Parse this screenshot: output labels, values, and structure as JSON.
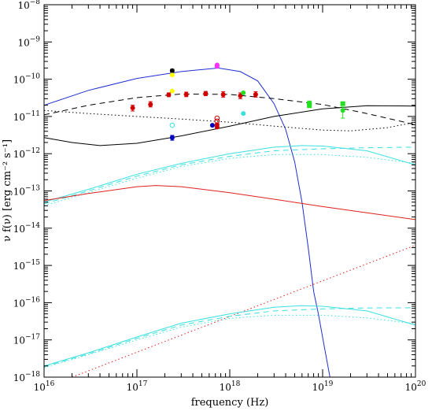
{
  "chart_data": {
    "type": "scatter",
    "xlabel": "frequency (Hz)",
    "ylabel": "ν f(ν) [erg cm⁻² s⁻¹]",
    "xscale": "log",
    "yscale": "log",
    "xlim": [
      1e+16,
      1e+20
    ],
    "ylim": [
      1e-18,
      1e-08
    ],
    "x_tick_labels": [
      {
        "base": "10",
        "exp": "16",
        "value": 1e+16
      },
      {
        "base": "10",
        "exp": "17",
        "value": 1e+17
      },
      {
        "base": "10",
        "exp": "18",
        "value": 1e+18
      },
      {
        "base": "10",
        "exp": "19",
        "value": 1e+19
      },
      {
        "base": "10",
        "exp": "20",
        "value": 1e+20
      }
    ],
    "y_tick_labels": [
      {
        "base": "10",
        "exp": "−18",
        "value": 1e-18
      },
      {
        "base": "10",
        "exp": "−17",
        "value": 1e-17
      },
      {
        "base": "10",
        "exp": "−16",
        "value": 1e-16
      },
      {
        "base": "10",
        "exp": "−15",
        "value": 1e-15
      },
      {
        "base": "10",
        "exp": "−14",
        "value": 1e-14
      },
      {
        "base": "10",
        "exp": "−13",
        "value": 1e-13
      },
      {
        "base": "10",
        "exp": "−12",
        "value": 1e-12
      },
      {
        "base": "10",
        "exp": "−11",
        "value": 1e-11
      },
      {
        "base": "10",
        "exp": "−10",
        "value": 1e-10
      },
      {
        "base": "10",
        "exp": "−9",
        "value": 1e-09
      },
      {
        "base": "10",
        "exp": "−8",
        "value": 1e-08
      }
    ],
    "curves": [
      {
        "color": "#1f2fd0",
        "dash": "solid",
        "points": [
          [
            1e+16,
            2e-11
          ],
          [
            3e+16,
            5e-11
          ],
          [
            1e+17,
            1.05e-10
          ],
          [
            3e+17,
            1.6e-10
          ],
          [
            7.5e+17,
            2e-10
          ],
          [
            1.3e+18,
            1.6e-10
          ],
          [
            2e+18,
            9e-11
          ],
          [
            3e+18,
            2.2e-11
          ],
          [
            4e+18,
            4.5e-12
          ],
          [
            5e+18,
            6e-13
          ],
          [
            6e+18,
            5e-14
          ],
          [
            7e+18,
            3e-15
          ],
          [
            8e+18,
            2e-16
          ],
          [
            9e+18,
            5e-17
          ],
          [
            1.05e+19,
            6e-18
          ],
          [
            1.2e+19,
            1e-18
          ]
        ]
      },
      {
        "color": "#000000",
        "dash": "solid",
        "points": [
          [
            1e+16,
            2.7e-12
          ],
          [
            2e+16,
            2e-12
          ],
          [
            4e+16,
            1.65e-12
          ],
          [
            1e+17,
            1.9e-12
          ],
          [
            3e+17,
            3e-12
          ],
          [
            1e+18,
            5.5e-12
          ],
          [
            3e+18,
            1e-11
          ],
          [
            1e+19,
            1.6e-11
          ],
          [
            3e+19,
            1.95e-11
          ],
          [
            1e+20,
            1.9e-11
          ]
        ]
      },
      {
        "color": "#000000",
        "dash": "long",
        "points": [
          [
            1e+16,
            1.1e-11
          ],
          [
            3e+16,
            2e-11
          ],
          [
            1e+17,
            3.2e-11
          ],
          [
            3e+17,
            4e-11
          ],
          [
            1e+18,
            3.9e-11
          ],
          [
            3e+18,
            3e-11
          ],
          [
            1e+19,
            2.1e-11
          ],
          [
            3e+19,
            1.2e-11
          ],
          [
            1e+20,
            6e-12
          ]
        ]
      },
      {
        "color": "#000000",
        "dash": "dot",
        "points": [
          [
            1e+16,
            1.45e-11
          ],
          [
            3e+16,
            1.2e-11
          ],
          [
            1e+17,
            1e-11
          ],
          [
            3e+17,
            8.5e-12
          ],
          [
            1e+18,
            7e-12
          ],
          [
            3e+18,
            5.5e-12
          ],
          [
            1e+19,
            4.3e-12
          ],
          [
            2e+19,
            4.1e-12
          ],
          [
            5e+19,
            5e-12
          ],
          [
            1e+20,
            7e-12
          ]
        ]
      },
      {
        "color": "#3ae0e0",
        "dash": "solid",
        "points": [
          [
            1e+16,
            5e-14
          ],
          [
            3e+16,
            1.1e-13
          ],
          [
            1e+17,
            2.8e-13
          ],
          [
            3e+17,
            5.5e-13
          ],
          [
            1e+18,
            1e-12
          ],
          [
            3e+18,
            1.5e-12
          ],
          [
            6e+18,
            1.65e-12
          ],
          [
            1e+19,
            1.6e-12
          ],
          [
            3e+19,
            1.2e-12
          ],
          [
            1e+20,
            5e-13
          ]
        ]
      },
      {
        "color": "#3ae0e0",
        "dash": "long",
        "points": [
          [
            1e+16,
            4.5e-14
          ],
          [
            3e+16,
            1e-13
          ],
          [
            1e+17,
            2.5e-13
          ],
          [
            3e+17,
            5e-13
          ],
          [
            1e+18,
            8.5e-13
          ],
          [
            3e+18,
            1.2e-12
          ],
          [
            1e+19,
            1.35e-12
          ],
          [
            3e+19,
            1.45e-12
          ],
          [
            1e+20,
            1.5e-12
          ]
        ]
      },
      {
        "color": "#3ae0e0",
        "dash": "dot",
        "points": [
          [
            1e+16,
            4e-14
          ],
          [
            3e+16,
            9e-14
          ],
          [
            1e+17,
            2.2e-13
          ],
          [
            3e+17,
            4.5e-13
          ],
          [
            1e+18,
            7.5e-13
          ],
          [
            3e+18,
            9.5e-13
          ],
          [
            1e+19,
            9.5e-13
          ],
          [
            3e+19,
            8e-13
          ],
          [
            1e+20,
            5.5e-13
          ]
        ]
      },
      {
        "color": "#e02020",
        "dash": "solid",
        "points": [
          [
            1e+16,
            5.5e-14
          ],
          [
            3e+16,
            8.5e-14
          ],
          [
            1e+17,
            1.3e-13
          ],
          [
            1.6e+17,
            1.4e-13
          ],
          [
            3e+17,
            1.3e-13
          ],
          [
            1e+18,
            9e-14
          ],
          [
            3e+18,
            6e-14
          ],
          [
            1e+19,
            3.8e-14
          ],
          [
            3e+19,
            2.6e-14
          ],
          [
            1e+20,
            1.7e-14
          ]
        ]
      },
      {
        "color": "#e02020",
        "dash": "dot",
        "points": [
          [
            2e+16,
            1e-18
          ],
          [
            1e+20,
            3.5e-15
          ]
        ]
      },
      {
        "color": "#3ae0e0",
        "dash": "solid",
        "points": [
          [
            1e+16,
            2e-18
          ],
          [
            3e+16,
            4.5e-18
          ],
          [
            1e+17,
            1.2e-17
          ],
          [
            3e+17,
            2.8e-17
          ],
          [
            1e+18,
            5e-17
          ],
          [
            3e+18,
            7.5e-17
          ],
          [
            6e+18,
            8.3e-17
          ],
          [
            1e+19,
            8e-17
          ],
          [
            3e+19,
            6e-17
          ],
          [
            1e+20,
            2.5e-17
          ]
        ]
      },
      {
        "color": "#3ae0e0",
        "dash": "long",
        "points": [
          [
            1e+16,
            1.9e-18
          ],
          [
            3e+16,
            4.2e-18
          ],
          [
            1e+17,
            1.1e-17
          ],
          [
            3e+17,
            2.5e-17
          ],
          [
            1e+18,
            4.3e-17
          ],
          [
            3e+18,
            6e-17
          ],
          [
            1e+19,
            6.8e-17
          ],
          [
            3e+19,
            7.2e-17
          ],
          [
            1e+20,
            7.3e-17
          ]
        ]
      },
      {
        "color": "#3ae0e0",
        "dash": "dot",
        "points": [
          [
            1e+16,
            1.8e-18
          ],
          [
            3e+16,
            4e-18
          ],
          [
            1e+17,
            1e-17
          ],
          [
            3e+17,
            2.2e-17
          ],
          [
            1e+18,
            3.8e-17
          ],
          [
            3e+18,
            4.6e-17
          ],
          [
            1e+19,
            4.6e-17
          ],
          [
            3e+19,
            3.9e-17
          ],
          [
            1e+20,
            2.7e-17
          ]
        ]
      }
    ],
    "points": [
      {
        "x": 2.4e+17,
        "y": 1.7e-10,
        "color": "#000000",
        "err": [
          1.55e-10,
          1.85e-10
        ]
      },
      {
        "x": 2.4e+17,
        "y": 1.3e-10,
        "color": "#ffff00"
      },
      {
        "x": 2.4e+17,
        "y": 4.8e-11,
        "color": "#ffff00"
      },
      {
        "x": 2.2e+17,
        "y": 3.8e-11,
        "color": "#d00000",
        "err": [
          3.4e-11,
          4.3e-11
        ]
      },
      {
        "x": 9e+16,
        "y": 1.7e-11,
        "color": "#d00000",
        "err": [
          1.4e-11,
          2e-11
        ]
      },
      {
        "x": 1.4e+17,
        "y": 2.1e-11,
        "color": "#d00000",
        "err": [
          1.8e-11,
          2.5e-11
        ]
      },
      {
        "x": 3.4e+17,
        "y": 3.9e-11,
        "color": "#d00000",
        "err": [
          3.4e-11,
          4.5e-11
        ]
      },
      {
        "x": 5.5e+17,
        "y": 4.1e-11,
        "color": "#d00000",
        "err": [
          3.6e-11,
          4.7e-11
        ]
      },
      {
        "x": 8.5e+17,
        "y": 3.9e-11,
        "color": "#d00000",
        "err": [
          3.3e-11,
          4.6e-11
        ]
      },
      {
        "x": 1.3e+18,
        "y": 3.6e-11,
        "color": "#d00000",
        "err": [
          3e-11,
          4.3e-11
        ]
      },
      {
        "x": 1.9e+18,
        "y": 3.9e-11,
        "color": "#d00000",
        "err": [
          3.3e-11,
          4.6e-11
        ]
      },
      {
        "x": 7.3e+17,
        "y": 9e-12,
        "color": "#d00000",
        "open": true
      },
      {
        "x": 7.3e+17,
        "y": 7.5e-12,
        "color": "#d00000",
        "open": true
      },
      {
        "x": 7.3e+17,
        "y": 6e-12,
        "color": "#d00000"
      },
      {
        "x": 7.3e+17,
        "y": 5.2e-12,
        "color": "#d00000"
      },
      {
        "x": 6.5e+17,
        "y": 5.8e-12,
        "color": "#0000c0"
      },
      {
        "x": 2.4e+17,
        "y": 2.7e-12,
        "color": "#0000c0",
        "err": [
          2.3e-12,
          3.1e-12
        ]
      },
      {
        "x": 2.4e+17,
        "y": 5.8e-12,
        "color": "#3ae0e0",
        "open": true
      },
      {
        "x": 1.4e+18,
        "y": 1.2e-11,
        "color": "#3ae0e0"
      },
      {
        "x": 1.4e+18,
        "y": 4.3e-11,
        "color": "#20e020"
      },
      {
        "x": 7.2e+18,
        "y": 2.2e-11,
        "color": "#20e020",
        "square": true,
        "err": [
          1.9e-11,
          2.6e-11
        ]
      },
      {
        "x": 7.2e+18,
        "y": 1.95e-11,
        "color": "#20e020",
        "square": true
      },
      {
        "x": 1.65e+19,
        "y": 2.2e-11,
        "color": "#20e020",
        "square": true
      },
      {
        "x": 1.65e+19,
        "y": 1.45e-11,
        "color": "#20e020",
        "err": [
          9e-12,
          1.8e-11
        ]
      }
    ],
    "bands": [
      {
        "x": 7.3e+17,
        "y_low": 1.9e-10,
        "y_high": 2.8e-10,
        "color": "#ff30ff"
      }
    ]
  }
}
